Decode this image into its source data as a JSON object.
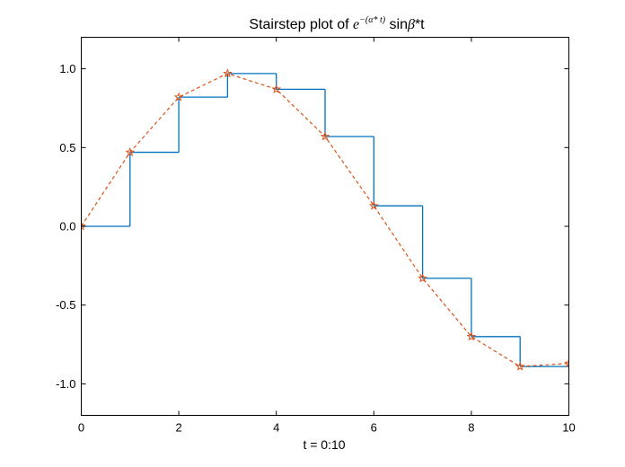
{
  "chart_data": {
    "type": "line",
    "title": {
      "prefix": "Stairstep plot of ",
      "base": "e",
      "exponent": "−(α* t)",
      "sin": " sin",
      "beta": "β",
      "suffix": "*t"
    },
    "xlabel": "t = 0:10",
    "ylabel": "",
    "xlim": [
      0,
      10
    ],
    "ylim": [
      -1.2,
      1.2
    ],
    "xticks": [
      0,
      2,
      4,
      6,
      8,
      10
    ],
    "xtick_labels": [
      "0",
      "2",
      "4",
      "6",
      "8",
      "10"
    ],
    "yticks": [
      -1.0,
      -0.5,
      0.0,
      0.5,
      1.0
    ],
    "ytick_labels": [
      "-1.0",
      "-0.5",
      "0.0",
      "0.5",
      "1.0"
    ],
    "grid": false,
    "x": [
      0,
      1,
      2,
      3,
      4,
      5,
      6,
      7,
      8,
      9,
      10
    ],
    "series": [
      {
        "style": "stairs",
        "color": "#0072BD",
        "values": [
          0.0,
          0.47,
          0.82,
          0.97,
          0.87,
          0.57,
          0.13,
          -0.33,
          -0.7,
          -0.89,
          -0.87
        ]
      },
      {
        "style": "dashed-line-star-markers",
        "color": "#D95319",
        "values": [
          0.0,
          0.47,
          0.82,
          0.97,
          0.87,
          0.57,
          0.13,
          -0.33,
          -0.7,
          -0.89,
          -0.87
        ]
      }
    ]
  }
}
